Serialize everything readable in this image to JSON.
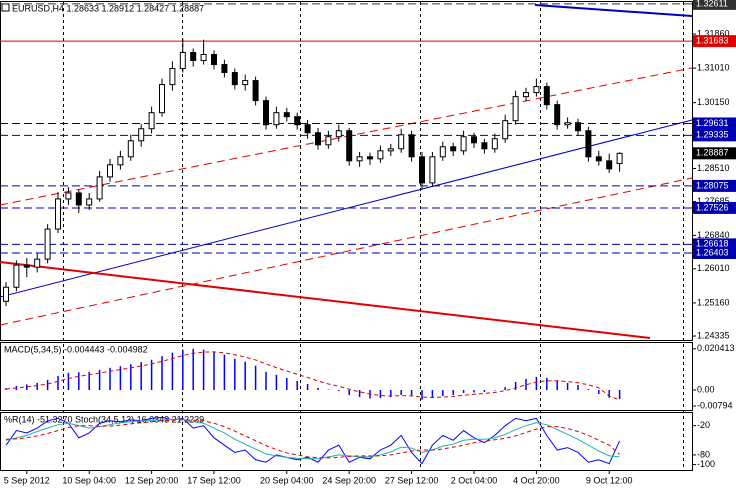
{
  "chart_data": [
    {
      "type": "candlestick",
      "title": "EURUSD,H4  1.28633 1.28912 1.28427 1.28887",
      "categories": [
        null,
        null,
        "5 Sep 2012",
        null,
        null,
        null,
        null,
        null,
        "10 Sep 04:00",
        null,
        null,
        null,
        null,
        null,
        "12 Sep 20:00",
        null,
        null,
        null,
        null,
        null,
        "17 Sep 12:00",
        null,
        null,
        null,
        null,
        null,
        null,
        "20 Sep 04:00",
        null,
        null,
        null,
        null,
        null,
        "24 Sep 20:00",
        null,
        null,
        null,
        null,
        null,
        "27 Sep 12:00",
        null,
        null,
        null,
        null,
        null,
        "2 Oct 04:00",
        null,
        null,
        null,
        null,
        null,
        "4 Oct 20:00",
        null,
        null,
        null,
        null,
        null,
        null,
        "9 Oct 12:00",
        null
      ],
      "ohlc": [
        [
          1.252,
          1.2568,
          1.2508,
          1.2555
        ],
        [
          1.2555,
          1.2622,
          1.2545,
          1.261
        ],
        [
          1.261,
          1.2628,
          1.258,
          1.2605
        ],
        [
          1.2605,
          1.264,
          1.2592,
          1.2625
        ],
        [
          1.2625,
          1.2712,
          1.2615,
          1.27
        ],
        [
          1.27,
          1.2792,
          1.269,
          1.2775
        ],
        [
          1.2775,
          1.2805,
          1.276,
          1.279
        ],
        [
          1.279,
          1.2798,
          1.274,
          1.276
        ],
        [
          1.276,
          1.279,
          1.2748,
          1.2775
        ],
        [
          1.2775,
          1.2845,
          1.2768,
          1.283
        ],
        [
          1.283,
          1.2875,
          1.2818,
          1.286
        ],
        [
          1.286,
          1.2895,
          1.2848,
          1.288
        ],
        [
          1.288,
          1.2935,
          1.287,
          1.292
        ],
        [
          1.292,
          1.2962,
          1.2905,
          1.295
        ],
        [
          1.295,
          1.3005,
          1.2938,
          1.299
        ],
        [
          1.299,
          1.3075,
          1.298,
          1.306
        ],
        [
          1.306,
          1.3118,
          1.3045,
          1.31
        ],
        [
          1.31,
          1.3175,
          1.309,
          1.314
        ],
        [
          1.314,
          1.315,
          1.3105,
          1.312
        ],
        [
          1.312,
          1.3172,
          1.311,
          1.3135
        ],
        [
          1.3135,
          1.3145,
          1.3098,
          1.311
        ],
        [
          1.311,
          1.3122,
          1.3078,
          1.309
        ],
        [
          1.309,
          1.31,
          1.3048,
          1.306
        ],
        [
          1.306,
          1.3085,
          1.3045,
          1.307
        ],
        [
          1.307,
          1.308,
          1.3008,
          1.302
        ],
        [
          1.302,
          1.303,
          1.2948,
          1.296
        ],
        [
          1.296,
          1.3005,
          1.295,
          1.299
        ],
        [
          1.299,
          1.3002,
          1.2968,
          1.298
        ],
        [
          1.298,
          1.299,
          1.2948,
          1.296
        ],
        [
          1.296,
          1.2972,
          1.2925,
          1.294
        ],
        [
          1.294,
          1.2952,
          1.2898,
          1.291
        ],
        [
          1.291,
          1.2945,
          1.29,
          1.293
        ],
        [
          1.293,
          1.296,
          1.2918,
          1.2945
        ],
        [
          1.2945,
          1.2952,
          1.2858,
          1.287
        ],
        [
          1.287,
          1.2892,
          1.2855,
          1.288
        ],
        [
          1.288,
          1.289,
          1.286,
          1.2875
        ],
        [
          1.2875,
          1.2908,
          1.2865,
          1.2895
        ],
        [
          1.2895,
          1.2912,
          1.2882,
          1.29
        ],
        [
          1.29,
          1.295,
          1.289,
          1.2935
        ],
        [
          1.2935,
          1.2945,
          1.2868,
          1.288
        ],
        [
          1.288,
          1.2892,
          1.28,
          1.2815
        ],
        [
          1.2815,
          1.2892,
          1.2808,
          1.288
        ],
        [
          1.288,
          1.2918,
          1.287,
          1.2905
        ],
        [
          1.2905,
          1.2915,
          1.2882,
          1.2895
        ],
        [
          1.2895,
          1.2945,
          1.2885,
          1.293
        ],
        [
          1.293,
          1.294,
          1.2902,
          1.2915
        ],
        [
          1.2915,
          1.2925,
          1.2888,
          1.29
        ],
        [
          1.29,
          1.2938,
          1.289,
          1.2925
        ],
        [
          1.2925,
          1.2985,
          1.2915,
          1.297
        ],
        [
          1.297,
          1.3045,
          1.296,
          1.303
        ],
        [
          1.303,
          1.3052,
          1.3018,
          1.304
        ],
        [
          1.304,
          1.3075,
          1.303,
          1.3055
        ],
        [
          1.3055,
          1.3065,
          1.2998,
          1.301
        ],
        [
          1.301,
          1.302,
          1.2948,
          1.296
        ],
        [
          1.296,
          1.2978,
          1.295,
          1.2965
        ],
        [
          1.2965,
          1.2975,
          1.2932,
          1.2945
        ],
        [
          1.2945,
          1.2955,
          1.2868,
          1.288
        ],
        [
          1.288,
          1.2895,
          1.2858,
          1.287
        ],
        [
          1.287,
          1.2888,
          1.284,
          1.285
        ],
        [
          1.28633,
          1.28912,
          1.28427,
          1.28887
        ]
      ],
      "ylim": [
        1.24235,
        1.32658
      ],
      "yticks": [
        {
          "value": 1.3186,
          "label": "1.31860"
        },
        {
          "value": 1.3101,
          "label": "1.31010"
        },
        {
          "value": 1.3015,
          "label": "1.30150"
        },
        {
          "value": 1.2851,
          "label": "1.28510"
        },
        1.27685,
        {
          "value": 1.2684,
          "label": "1.26840"
        },
        {
          "value": 1.2601,
          "label": "1.26010"
        },
        {
          "value": 1.2516,
          "label": "1.25160"
        },
        1.24335
      ],
      "levels": [
        {
          "value": 1.32611,
          "color": "#303030",
          "style": "dashed"
        },
        {
          "value": 1.31683,
          "color": "#e00000",
          "style": "solid"
        },
        {
          "value": 1.29631,
          "color": "#0000b0",
          "style": "dashed"
        },
        {
          "value": 1.29335,
          "color": "#0000b0",
          "style": "dashed"
        },
        {
          "value": 1.28887,
          "color": "#000000",
          "style": "none"
        },
        {
          "value": 1.28075,
          "color": "#0000b0",
          "style": "dashed"
        },
        {
          "value": 1.27526,
          "color": "#0000b0",
          "style": "dashed"
        },
        {
          "value": 1.26618,
          "color": "#0000b0",
          "style": "dashed"
        },
        {
          "value": 1.26403,
          "color": "#0000b0",
          "style": "dashed"
        }
      ]
    },
    {
      "type": "macd",
      "title": "MACD(5,34,5) -0.004443 -0.004982",
      "histogram": {
        "color": "#0000ff",
        "values": [
          0.001,
          0.002,
          0.0028,
          0.0035,
          0.005,
          0.007,
          0.0085,
          0.0088,
          0.009,
          0.01,
          0.011,
          0.0118,
          0.0128,
          0.0138,
          0.015,
          0.0168,
          0.0185,
          0.02,
          0.0204,
          0.02,
          0.019,
          0.0175,
          0.0155,
          0.014,
          0.012,
          0.009,
          0.0075,
          0.006,
          0.0045,
          0.003,
          0.001,
          0.0002,
          -0.0005,
          -0.0025,
          -0.0035,
          -0.0042,
          -0.004,
          -0.0035,
          -0.0025,
          -0.003,
          -0.0048,
          -0.004,
          -0.003,
          -0.0025,
          -0.0015,
          -0.0012,
          -0.001,
          -0.0003,
          0.0015,
          0.004,
          0.0055,
          0.0065,
          0.006,
          0.0045,
          0.0035,
          0.0025,
          0.0005,
          -0.002,
          -0.0038,
          -0.004443
        ]
      },
      "signal": {
        "color": "#e00000",
        "values": [
          0.0005,
          0.001,
          0.0016,
          0.0022,
          0.003,
          0.0043,
          0.0057,
          0.0068,
          0.0076,
          0.0084,
          0.0093,
          0.0101,
          0.011,
          0.0119,
          0.013,
          0.0142,
          0.0156,
          0.0171,
          0.0182,
          0.0188,
          0.0189,
          0.0184,
          0.0175,
          0.0163,
          0.0149,
          0.0129,
          0.0111,
          0.0094,
          0.0078,
          0.0062,
          0.0045,
          0.003,
          0.0019,
          0.0004,
          -0.0009,
          -0.002,
          -0.0027,
          -0.003,
          -0.0028,
          -0.0029,
          -0.0035,
          -0.0037,
          -0.0035,
          -0.0032,
          -0.0026,
          -0.0021,
          -0.0017,
          -0.0012,
          -0.0003,
          0.0011,
          0.0026,
          0.0039,
          0.0046,
          0.0046,
          0.0042,
          0.0036,
          0.0026,
          0.0011,
          -0.003,
          -0.004982
        ]
      },
      "ylim": [
        -0.0099,
        0.0233
      ],
      "yticks": [
        0.020413,
        {
          "value": 0,
          "label": "0.00"
        },
        -0.00794
      ]
    },
    {
      "type": "line",
      "title": "%R(14) -51.3270  Stoch(34,5,13) 16.0343 21.2239",
      "series": [
        {
          "color": "#0000ff",
          "style": "solid",
          "values": [
            -60,
            -30,
            -35,
            -25,
            -10,
            -5,
            -15,
            -45,
            -35,
            -15,
            -10,
            -12,
            -8,
            -10,
            -5,
            -3,
            -8,
            -5,
            -25,
            -20,
            -45,
            -60,
            -75,
            -70,
            -90,
            -95,
            -80,
            -85,
            -90,
            -85,
            -95,
            -70,
            -60,
            -95,
            -85,
            -88,
            -70,
            -60,
            -40,
            -75,
            -98,
            -60,
            -40,
            -50,
            -30,
            -45,
            -55,
            -40,
            -20,
            -5,
            -10,
            -5,
            -40,
            -70,
            -65,
            -75,
            -95,
            -90,
            -98,
            -51.327
          ]
        },
        {
          "color": "#20b2aa",
          "style": "solid",
          "values": [
            -50,
            -45,
            -40,
            -32,
            -25,
            -18,
            -15,
            -20,
            -25,
            -22,
            -18,
            -14,
            -12,
            -10,
            -9,
            -8,
            -7,
            -7,
            -12,
            -15,
            -25,
            -35,
            -48,
            -58,
            -68,
            -78,
            -82,
            -85,
            -87,
            -88,
            -88,
            -84,
            -80,
            -82,
            -84,
            -84,
            -80,
            -74,
            -64,
            -66,
            -75,
            -70,
            -62,
            -58,
            -50,
            -48,
            -48,
            -45,
            -38,
            -28,
            -20,
            -14,
            -18,
            -28,
            -38,
            -48,
            -60,
            -72,
            -82,
            -84
          ]
        },
        {
          "color": "#e00000",
          "style": "dashed",
          "values": [
            -48,
            -47,
            -45,
            -41,
            -36,
            -30,
            -24,
            -20,
            -20,
            -21,
            -21,
            -19,
            -16,
            -14,
            -12,
            -10,
            -9,
            -8,
            -9,
            -10,
            -15,
            -22,
            -31,
            -41,
            -51,
            -61,
            -69,
            -76,
            -80,
            -84,
            -86,
            -86,
            -85,
            -83,
            -82,
            -82,
            -82,
            -80,
            -76,
            -72,
            -70,
            -70,
            -68,
            -64,
            -60,
            -55,
            -52,
            -49,
            -46,
            -41,
            -34,
            -27,
            -22,
            -22,
            -26,
            -32,
            -40,
            -50,
            -60,
            -79
          ]
        }
      ],
      "ylim": [
        -111,
        6
      ],
      "yticks": [
        -20,
        -80,
        -100
      ]
    }
  ]
}
